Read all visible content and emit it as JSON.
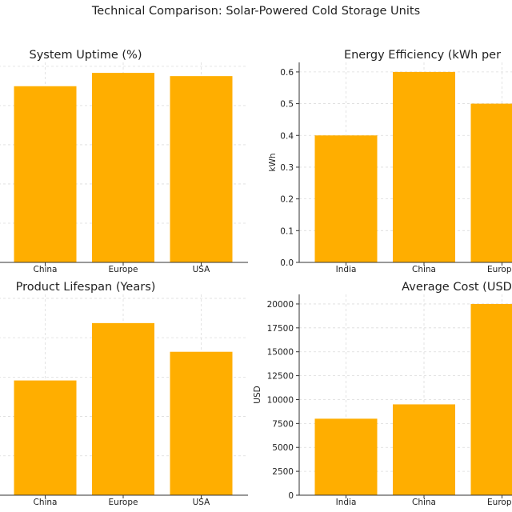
{
  "figure": {
    "title": "Technical Comparison: Solar-Powered Cold Storage Units"
  },
  "chart_data": [
    {
      "type": "bar",
      "title": "System Uptime (%)",
      "xlabel": "",
      "ylabel": "",
      "categories": [
        "China",
        "Europe",
        "USA"
      ],
      "values": [
        92.5,
        99.5,
        97.8
      ],
      "ylim": [
        0,
        105
      ],
      "yticks": [],
      "grid": true,
      "color": "#ffae00"
    },
    {
      "type": "bar",
      "title": "Energy Efficiency (kWh per",
      "xlabel": "",
      "ylabel": "kWh",
      "categories": [
        "India",
        "China",
        "Europe"
      ],
      "values": [
        0.4,
        0.6,
        0.5
      ],
      "ylim": [
        0,
        0.63
      ],
      "yticks": [
        "0.0",
        "0.1",
        "0.2",
        "0.3",
        "0.4",
        "0.5",
        "0.6"
      ],
      "grid": true,
      "color": "#ffae00"
    },
    {
      "type": "bar",
      "title": "Product Lifespan (Years)",
      "xlabel": "",
      "ylabel": "",
      "categories": [
        "China",
        "Europe",
        "USA"
      ],
      "values": [
        12,
        18,
        15
      ],
      "ylim": [
        0,
        21
      ],
      "yticks": [],
      "grid": true,
      "color": "#ffae00"
    },
    {
      "type": "bar",
      "title": "Average Cost (USD",
      "xlabel": "",
      "ylabel": "USD",
      "categories": [
        "India",
        "China",
        "Europe"
      ],
      "values": [
        8000,
        9500,
        20000
      ],
      "ylim": [
        0,
        21000
      ],
      "yticks": [
        "0",
        "2500",
        "5000",
        "7500",
        "10000",
        "12500",
        "15000",
        "17500",
        "20000"
      ],
      "grid": true,
      "color": "#ffae00"
    }
  ]
}
